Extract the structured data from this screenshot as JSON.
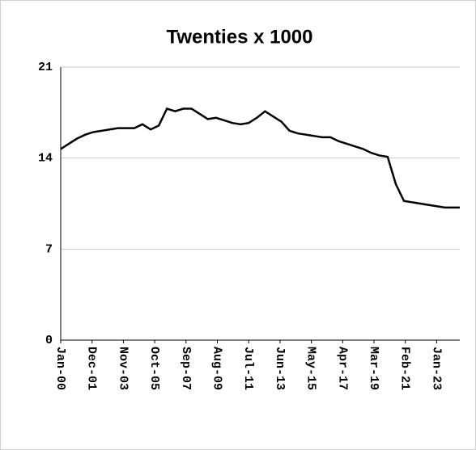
{
  "chart_data": {
    "type": "line",
    "title": "Twenties x 1000",
    "x": [
      "2000-01",
      "2000-07",
      "2001-01",
      "2001-07",
      "2002-01",
      "2002-07",
      "2003-01",
      "2003-07",
      "2004-01",
      "2004-07",
      "2005-01",
      "2005-07",
      "2006-01",
      "2006-07",
      "2007-01",
      "2007-07",
      "2008-01",
      "2008-07",
      "2009-01",
      "2009-07",
      "2010-01",
      "2010-07",
      "2011-01",
      "2011-07",
      "2012-01",
      "2012-07",
      "2013-01",
      "2013-07",
      "2014-01",
      "2014-07",
      "2015-01",
      "2015-07",
      "2016-01",
      "2016-07",
      "2017-01",
      "2017-07",
      "2018-01",
      "2018-07",
      "2019-01",
      "2019-07",
      "2020-01",
      "2020-07",
      "2021-01",
      "2021-07",
      "2022-01",
      "2022-07",
      "2023-01",
      "2023-07",
      "2024-01",
      "2024-06"
    ],
    "series": [
      {
        "name": "Twenties x 1000",
        "color": "#000000",
        "values": [
          14.7,
          15.1,
          15.5,
          15.8,
          16.0,
          16.1,
          16.2,
          16.3,
          16.3,
          16.3,
          16.6,
          16.2,
          16.5,
          17.8,
          17.6,
          17.8,
          17.8,
          17.4,
          17.0,
          17.1,
          16.9,
          16.7,
          16.6,
          16.7,
          17.1,
          17.6,
          17.2,
          16.8,
          16.1,
          15.9,
          15.8,
          15.7,
          15.6,
          15.6,
          15.3,
          15.1,
          14.9,
          14.7,
          14.4,
          14.2,
          14.1,
          12.0,
          10.7,
          10.6,
          10.5,
          10.4,
          10.3,
          10.2,
          10.2,
          10.2
        ]
      }
    ],
    "xlim": [
      "2000-01",
      "2024-06"
    ],
    "xticks": [
      {
        "value": "2000-01",
        "label": "Jan-00"
      },
      {
        "value": "2001-12",
        "label": "Dec-01"
      },
      {
        "value": "2003-11",
        "label": "Nov-03"
      },
      {
        "value": "2005-10",
        "label": "Oct-05"
      },
      {
        "value": "2007-09",
        "label": "Sep-07"
      },
      {
        "value": "2009-08",
        "label": "Aug-09"
      },
      {
        "value": "2011-07",
        "label": "Jul-11"
      },
      {
        "value": "2013-06",
        "label": "Jun-13"
      },
      {
        "value": "2015-05",
        "label": "May-15"
      },
      {
        "value": "2017-04",
        "label": "Apr-17"
      },
      {
        "value": "2019-03",
        "label": "Mar-19"
      },
      {
        "value": "2021-02",
        "label": "Feb-21"
      },
      {
        "value": "2023-01",
        "label": "Jan-23"
      }
    ],
    "ylim": [
      0,
      21
    ],
    "yticks": [
      0,
      7,
      14,
      21
    ],
    "grid": true
  }
}
